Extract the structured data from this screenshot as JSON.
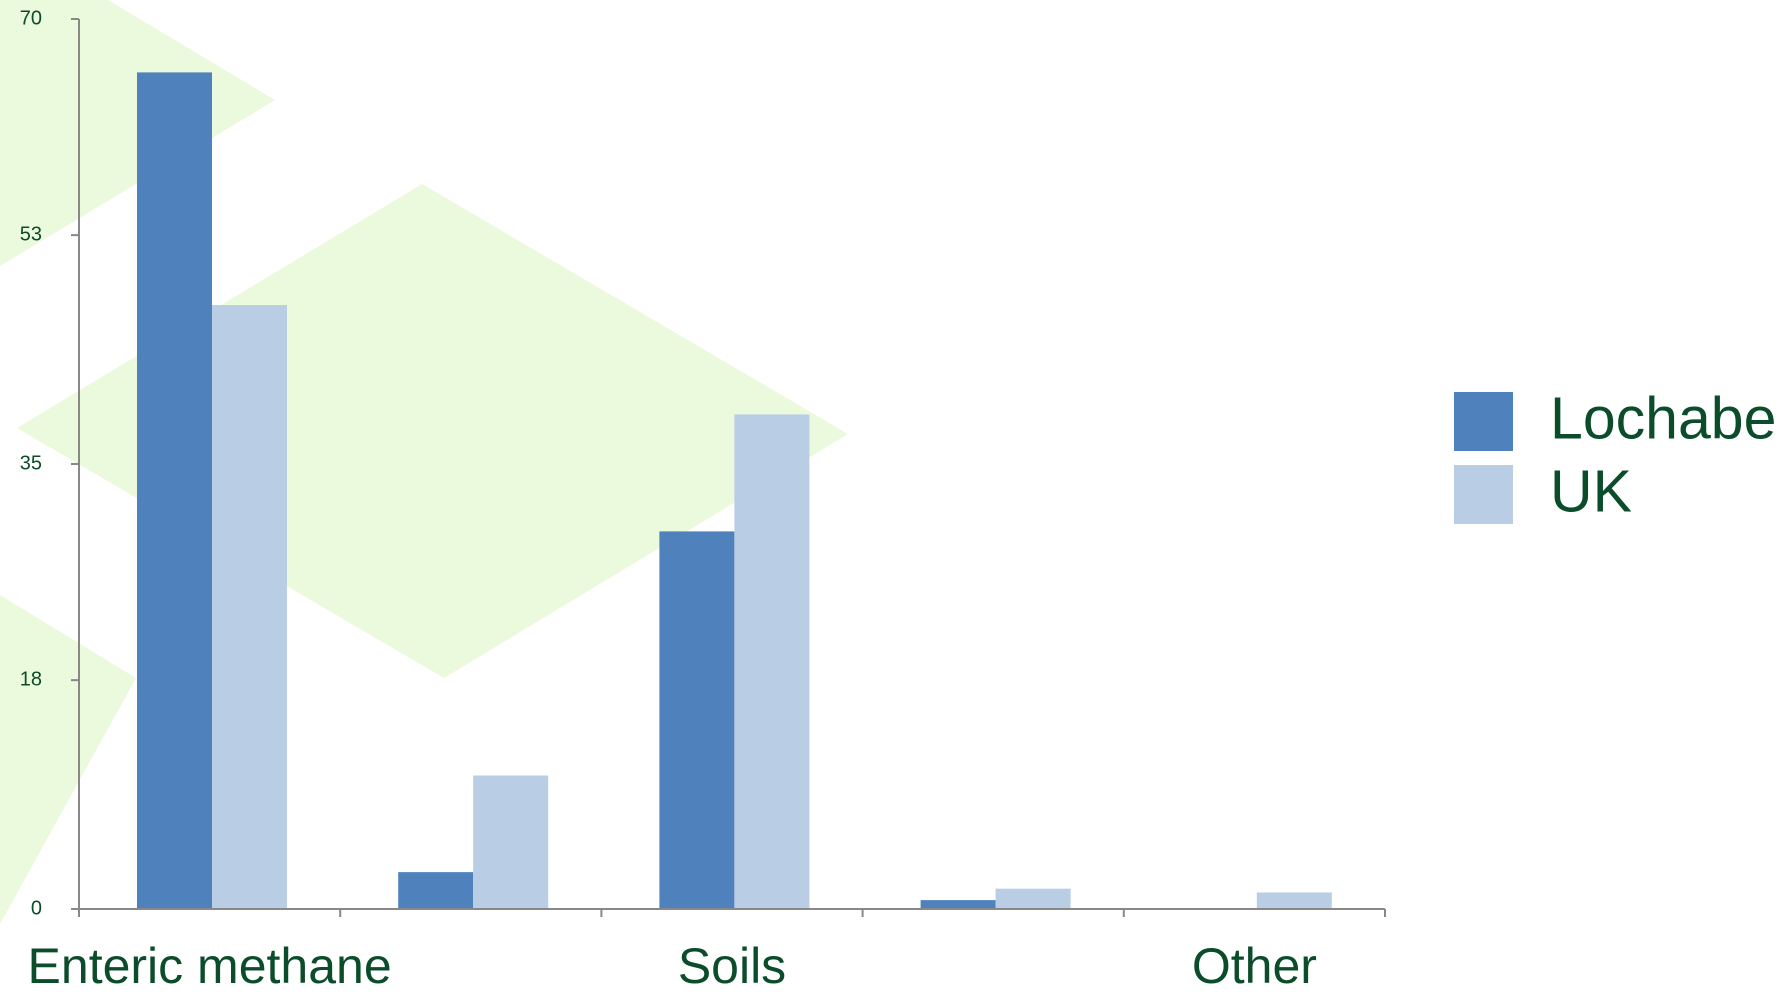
{
  "chart_data": {
    "type": "bar",
    "categories": [
      "Enteric methane",
      null,
      "Soils",
      null,
      "Other"
    ],
    "series": [
      {
        "name": "Lochaber",
        "color": "#4f81bd",
        "values": [
          65.8,
          2.9,
          29.7,
          0.7,
          0
        ]
      },
      {
        "name": "UK",
        "color": "#b9cde5",
        "values": [
          47.5,
          10.5,
          38.9,
          1.6,
          1.3
        ]
      }
    ],
    "ylim": [
      0,
      70
    ],
    "yticks": [
      0,
      18,
      35,
      53,
      70
    ]
  }
}
